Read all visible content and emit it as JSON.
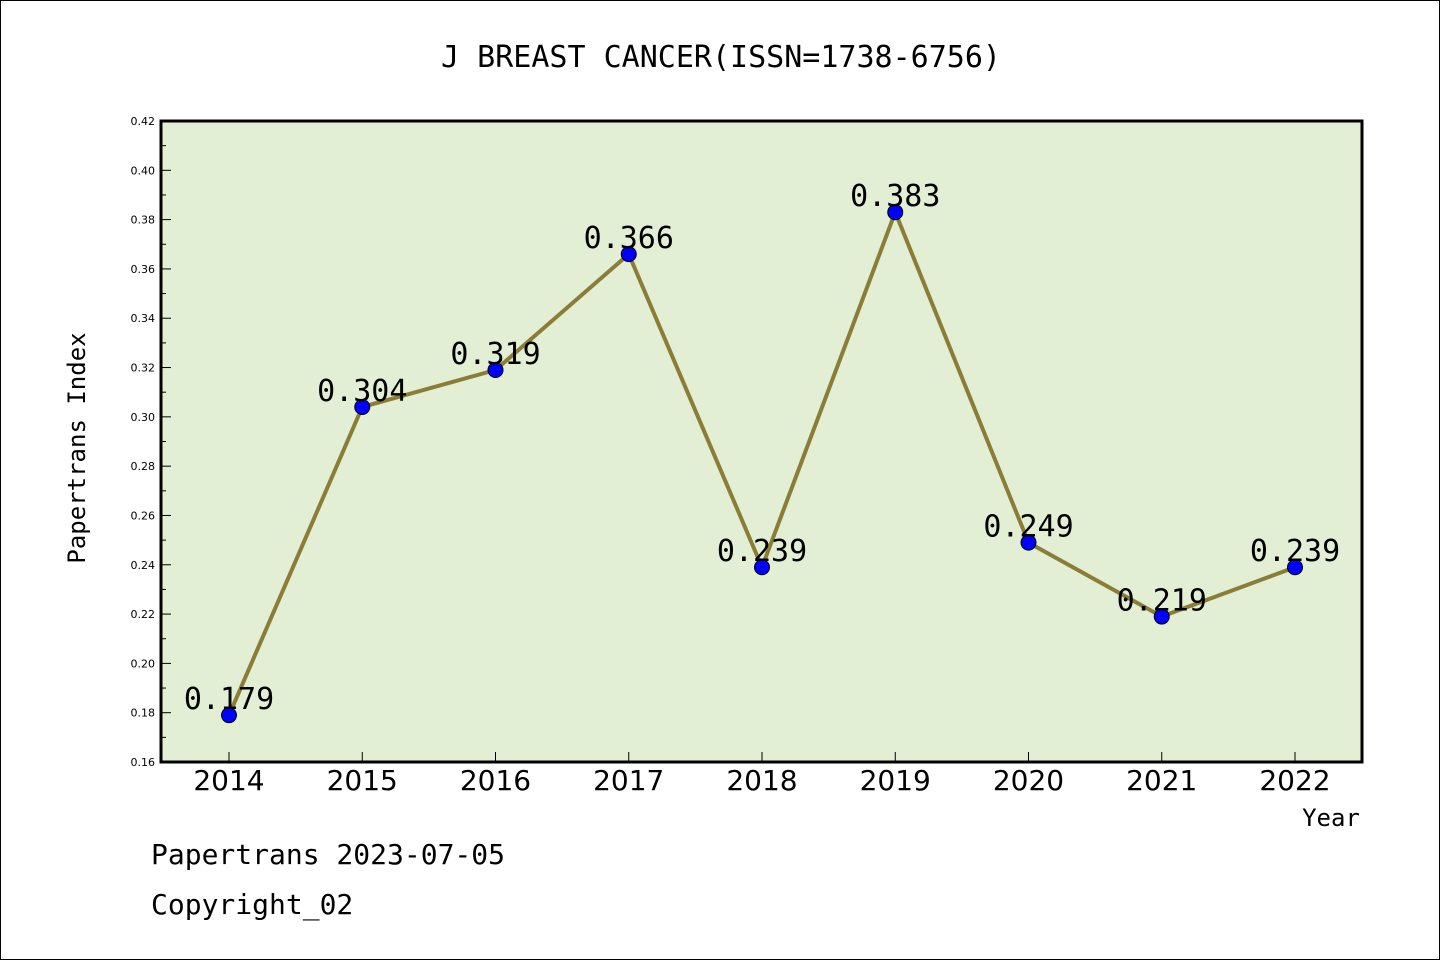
{
  "chart_data": {
    "type": "line",
    "title": "J BREAST CANCER(ISSN=1738-6756)",
    "xlabel": "Year",
    "ylabel": "Papertrans Index",
    "categories": [
      "2014",
      "2015",
      "2016",
      "2017",
      "2018",
      "2019",
      "2020",
      "2021",
      "2022"
    ],
    "series": [
      {
        "values": [
          0.179,
          0.304,
          0.319,
          0.366,
          0.239,
          0.383,
          0.249,
          0.219,
          0.239
        ]
      }
    ],
    "data_labels": [
      "0.179",
      "0.304",
      "0.319",
      "0.366",
      "0.239",
      "0.383",
      "0.249",
      "0.219",
      "0.239"
    ],
    "ylim": [
      0.16,
      0.42
    ],
    "yticks": [
      "0.16",
      "0.18",
      "0.20",
      "0.22",
      "0.24",
      "0.26",
      "0.28",
      "0.30",
      "0.32",
      "0.34",
      "0.36",
      "0.38",
      "0.40",
      "0.42"
    ],
    "grid": false,
    "colors": {
      "plot_background": "#e2efd5",
      "line": "#8b7d35",
      "marker": "#0000ff"
    }
  },
  "footer": {
    "line1": "Papertrans 2023-07-05",
    "line2": "Copyright_02"
  }
}
